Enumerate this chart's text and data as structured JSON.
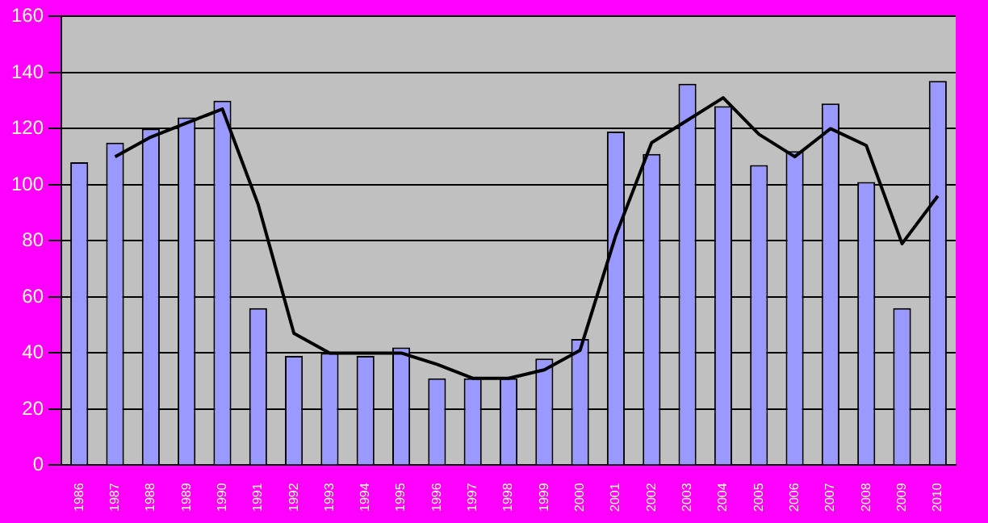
{
  "chart_data": {
    "type": "bar",
    "categories": [
      "1986",
      "1987",
      "1988",
      "1989",
      "1990",
      "1991",
      "1992",
      "1993",
      "1994",
      "1995",
      "1996",
      "1997",
      "1998",
      "1999",
      "2000",
      "2001",
      "2002",
      "2003",
      "2004",
      "2005",
      "2006",
      "2007",
      "2008",
      "2009",
      "2010"
    ],
    "series": [
      {
        "color": "#9999ff",
        "values": [
          108,
          115,
          120,
          124,
          130,
          56,
          39,
          40,
          39,
          42,
          31,
          31,
          31,
          38,
          45,
          119,
          111,
          136,
          128,
          107,
          112,
          129,
          101,
          56,
          137
        ]
      },
      {
        "type": "line",
        "color": "#000000",
        "values": [
          null,
          110,
          117,
          122,
          127,
          93,
          47,
          40,
          40,
          40,
          36,
          31,
          31,
          34,
          41,
          82,
          115,
          123,
          131,
          118,
          110,
          120,
          114,
          79,
          96
        ]
      }
    ],
    "ylim": [
      0,
      160
    ],
    "yticks": [
      0,
      20,
      40,
      60,
      80,
      100,
      120,
      140,
      160
    ],
    "grid": "y",
    "legend": false,
    "marker": "none",
    "line_style": "solid"
  }
}
